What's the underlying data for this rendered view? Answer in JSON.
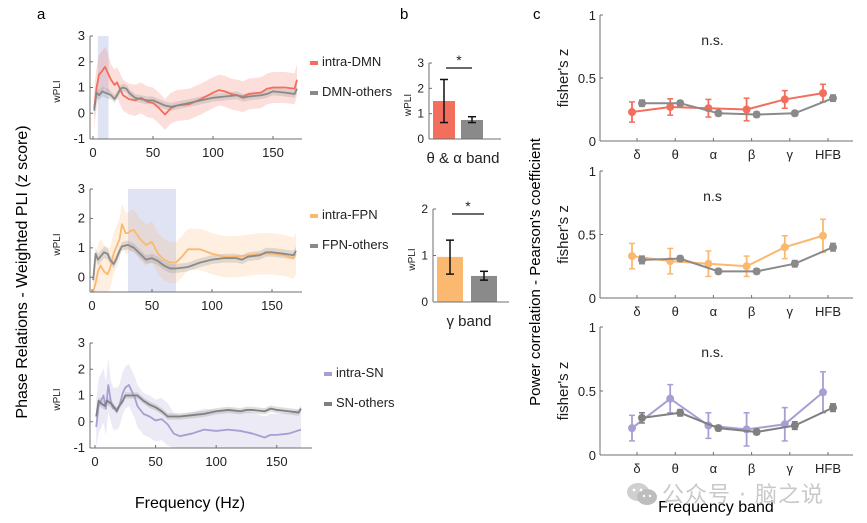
{
  "panel_labels": {
    "a": "a",
    "b": "b",
    "c": "c"
  },
  "watermark": "公众号 · 脑之说",
  "chart_data": [
    {
      "id": "a1",
      "type": "line",
      "panel": "a",
      "title": "",
      "xlabel": "",
      "ylabel": "wPLI",
      "shared_ylabel": "Phase Relations - Weighted PLI (z score)",
      "shared_xlabel": "Frequency (Hz)",
      "xlim": [
        -5,
        180
      ],
      "ylim": [
        -1,
        3
      ],
      "xticks": [
        0,
        50,
        100,
        150
      ],
      "yticks": [
        -1,
        0,
        1,
        2,
        3
      ],
      "highlight_band": [
        4,
        13
      ],
      "legend": "right",
      "series": [
        {
          "name": "intra-DMN",
          "color": "#f36e5c",
          "x": [
            1,
            3,
            5,
            7,
            10,
            12,
            15,
            18,
            20,
            23,
            25,
            30,
            35,
            40,
            45,
            50,
            55,
            60,
            65,
            70,
            80,
            90,
            100,
            105,
            110,
            115,
            120,
            125,
            130,
            140,
            145,
            150,
            160,
            168,
            170
          ],
          "y": [
            0.2,
            1.0,
            1.5,
            1.6,
            1.8,
            1.6,
            1.3,
            1.1,
            1.2,
            0.9,
            0.7,
            0.55,
            0.5,
            0.6,
            0.45,
            0.4,
            0.2,
            -0.05,
            0.2,
            0.3,
            0.35,
            0.55,
            0.8,
            0.9,
            0.85,
            0.75,
            0.7,
            0.65,
            0.75,
            0.8,
            0.95,
            1.0,
            1.0,
            0.95,
            1.3
          ],
          "ci": 0.6
        },
        {
          "name": "DMN-others",
          "color": "#8a8a8a",
          "x": [
            1,
            3,
            5,
            8,
            10,
            13,
            15,
            18,
            20,
            23,
            25,
            28,
            30,
            35,
            40,
            45,
            50,
            55,
            60,
            65,
            70,
            80,
            90,
            100,
            110,
            120,
            125,
            130,
            140,
            145,
            150,
            160,
            168,
            170
          ],
          "y": [
            0.1,
            0.8,
            0.7,
            0.85,
            0.8,
            0.75,
            0.7,
            0.55,
            0.7,
            0.95,
            1.0,
            0.95,
            0.8,
            0.6,
            0.55,
            0.5,
            0.5,
            0.4,
            0.3,
            0.25,
            0.3,
            0.4,
            0.5,
            0.6,
            0.65,
            0.7,
            0.6,
            0.65,
            0.7,
            0.75,
            0.85,
            0.8,
            0.75,
            0.95
          ],
          "ci": 0.15
        }
      ]
    },
    {
      "id": "a2",
      "type": "line",
      "panel": "a",
      "title": "",
      "xlabel": "",
      "ylabel": "wPLI",
      "xlim": [
        -5,
        180
      ],
      "ylim": [
        -0.5,
        3
      ],
      "xticks": [
        0,
        50,
        100,
        150
      ],
      "yticks": [
        0,
        1,
        2,
        3
      ],
      "highlight_band": [
        30,
        70
      ],
      "legend": "right",
      "series": [
        {
          "name": "intra-FPN",
          "color": "#fbb870",
          "x": [
            1,
            3,
            5,
            7,
            10,
            13,
            15,
            18,
            20,
            23,
            25,
            28,
            30,
            33,
            35,
            40,
            45,
            50,
            55,
            60,
            65,
            70,
            75,
            80,
            90,
            100,
            110,
            120,
            130,
            140,
            150,
            160,
            168,
            170
          ],
          "y": [
            -0.5,
            -0.2,
            0.2,
            0.4,
            0.2,
            0.1,
            0.3,
            0.8,
            1.0,
            1.3,
            1.8,
            1.5,
            1.5,
            1.6,
            1.6,
            1.3,
            1.1,
            1.2,
            0.8,
            0.6,
            0.5,
            0.5,
            0.7,
            0.95,
            0.95,
            0.8,
            0.7,
            0.7,
            0.75,
            0.8,
            0.8,
            0.75,
            0.65,
            0.8
          ],
          "ci": 0.7
        },
        {
          "name": "FPN-others",
          "color": "#8a8a8a",
          "x": [
            1,
            3,
            5,
            8,
            10,
            13,
            15,
            18,
            20,
            23,
            25,
            30,
            35,
            40,
            45,
            50,
            55,
            60,
            65,
            70,
            80,
            90,
            100,
            110,
            120,
            125,
            130,
            140,
            145,
            150,
            160,
            168,
            170
          ],
          "y": [
            -0.1,
            0.8,
            0.6,
            0.75,
            0.85,
            0.8,
            0.6,
            0.45,
            0.6,
            0.9,
            1.05,
            1.1,
            1.0,
            0.8,
            0.6,
            0.65,
            0.55,
            0.4,
            0.3,
            0.3,
            0.35,
            0.5,
            0.6,
            0.65,
            0.65,
            0.6,
            0.7,
            0.75,
            0.85,
            0.85,
            0.8,
            0.75,
            0.9
          ],
          "ci": 0.15
        }
      ]
    },
    {
      "id": "a3",
      "type": "line",
      "panel": "a",
      "title": "",
      "xlabel": "",
      "ylabel": "wPLI",
      "xlim": [
        -5,
        180
      ],
      "ylim": [
        -1,
        3
      ],
      "xticks": [
        0,
        50,
        100,
        150
      ],
      "yticks": [
        -1,
        0,
        1,
        2,
        3
      ],
      "legend": "right",
      "series": [
        {
          "name": "intra-SN",
          "color": "#a89ed3",
          "x": [
            1,
            3,
            5,
            7,
            9,
            11,
            13,
            15,
            18,
            20,
            23,
            25,
            28,
            30,
            33,
            35,
            40,
            45,
            50,
            55,
            60,
            65,
            70,
            80,
            90,
            100,
            110,
            120,
            130,
            140,
            145,
            150,
            160,
            170
          ],
          "y": [
            -0.2,
            0.6,
            0.8,
            1.0,
            0.5,
            1.4,
            0.8,
            0.5,
            0.5,
            0.6,
            1.1,
            1.3,
            1.4,
            1.2,
            0.9,
            0.6,
            0.3,
            0.2,
            0.05,
            0.1,
            -0.1,
            -0.45,
            -0.55,
            -0.45,
            -0.3,
            -0.35,
            -0.3,
            -0.35,
            -0.45,
            -0.6,
            -0.5,
            -0.5,
            -0.45,
            -0.3
          ],
          "ci": 0.8
        },
        {
          "name": "SN-others",
          "color": "#808080",
          "x": [
            1,
            3,
            5,
            8,
            10,
            13,
            15,
            18,
            20,
            23,
            25,
            30,
            35,
            40,
            45,
            50,
            55,
            60,
            65,
            70,
            80,
            90,
            100,
            110,
            120,
            125,
            130,
            140,
            145,
            150,
            160,
            168,
            170
          ],
          "y": [
            0.2,
            0.8,
            0.7,
            0.6,
            0.8,
            0.7,
            0.6,
            0.4,
            0.6,
            0.8,
            1.0,
            1.0,
            1.0,
            0.8,
            0.65,
            0.55,
            0.4,
            0.2,
            0.2,
            0.2,
            0.25,
            0.3,
            0.4,
            0.45,
            0.4,
            0.45,
            0.45,
            0.4,
            0.5,
            0.45,
            0.4,
            0.35,
            0.5
          ],
          "ci": 0.12
        }
      ]
    },
    {
      "id": "b1",
      "type": "bar",
      "panel": "b",
      "xlabel": "θ & α band",
      "ylabel": "wPLI",
      "ylim": [
        0,
        3
      ],
      "yticks": [
        0,
        1,
        2,
        3
      ],
      "categories": [
        "intra-DMN",
        "DMN-others"
      ],
      "values": [
        1.5,
        0.75
      ],
      "err_low": [
        0.65,
        0.65
      ],
      "err_high": [
        2.35,
        0.88
      ],
      "colors": [
        "#f36e5c",
        "#8a8a8a"
      ],
      "significance": "*"
    },
    {
      "id": "b2",
      "type": "bar",
      "panel": "b",
      "xlabel": "γ band",
      "ylabel": "wPLI",
      "ylim": [
        0,
        2
      ],
      "yticks": [
        0,
        1,
        2
      ],
      "categories": [
        "intra-FPN",
        "FPN-others"
      ],
      "values": [
        0.97,
        0.56
      ],
      "err_low": [
        0.6,
        0.47
      ],
      "err_high": [
        1.33,
        0.66
      ],
      "colors": [
        "#fbb870",
        "#8a8a8a"
      ],
      "significance": "*"
    },
    {
      "id": "c1",
      "type": "line",
      "panel": "c",
      "ylabel": "fisher's z",
      "shared_ylabel": "Power correlation - Pearson's coefficient",
      "shared_xlabel": "Frequency band",
      "categories": [
        "δ",
        "θ",
        "α",
        "β",
        "γ",
        "HFB"
      ],
      "ylim": [
        0,
        1
      ],
      "yticks": [
        0,
        0.5,
        1
      ],
      "annotation": "n.s.",
      "series": [
        {
          "name": "intra-DMN",
          "color": "#f36e5c",
          "values": [
            0.23,
            0.27,
            0.26,
            0.25,
            0.33,
            0.38
          ],
          "err": [
            0.08,
            0.065,
            0.07,
            0.09,
            0.07,
            0.07
          ]
        },
        {
          "name": "DMN-others",
          "color": "#8a8a8a",
          "values": [
            0.3,
            0.3,
            0.22,
            0.21,
            0.22,
            0.34
          ],
          "err": [
            0.025,
            0.02,
            0.02,
            0.02,
            0.02,
            0.025
          ]
        }
      ]
    },
    {
      "id": "c2",
      "type": "line",
      "panel": "c",
      "ylabel": "fisher's z",
      "categories": [
        "δ",
        "θ",
        "α",
        "β",
        "γ",
        "HFB"
      ],
      "ylim": [
        0,
        1
      ],
      "yticks": [
        0,
        0.5,
        1
      ],
      "annotation": "n.s",
      "series": [
        {
          "name": "intra-FPN",
          "color": "#fbb870",
          "values": [
            0.33,
            0.29,
            0.27,
            0.25,
            0.4,
            0.49
          ],
          "err": [
            0.1,
            0.1,
            0.1,
            0.08,
            0.09,
            0.13
          ]
        },
        {
          "name": "FPN-others",
          "color": "#8a8a8a",
          "values": [
            0.3,
            0.31,
            0.21,
            0.21,
            0.27,
            0.4
          ],
          "err": [
            0.03,
            0.02,
            0.02,
            0.02,
            0.025,
            0.03
          ]
        }
      ]
    },
    {
      "id": "c3",
      "type": "line",
      "panel": "c",
      "ylabel": "fisher's z",
      "categories": [
        "δ",
        "θ",
        "α",
        "β",
        "γ",
        "HFB"
      ],
      "ylim": [
        0,
        1
      ],
      "yticks": [
        0,
        0.5,
        1
      ],
      "annotation": "n.s.",
      "series": [
        {
          "name": "intra-SN",
          "color": "#a89ed3",
          "values": [
            0.21,
            0.44,
            0.23,
            0.2,
            0.24,
            0.49
          ],
          "err": [
            0.1,
            0.11,
            0.1,
            0.13,
            0.13,
            0.16
          ]
        },
        {
          "name": "SN-others",
          "color": "#808080",
          "values": [
            0.29,
            0.33,
            0.21,
            0.18,
            0.23,
            0.37
          ],
          "err": [
            0.04,
            0.025,
            0.02,
            0.02,
            0.03,
            0.03
          ]
        }
      ]
    }
  ]
}
